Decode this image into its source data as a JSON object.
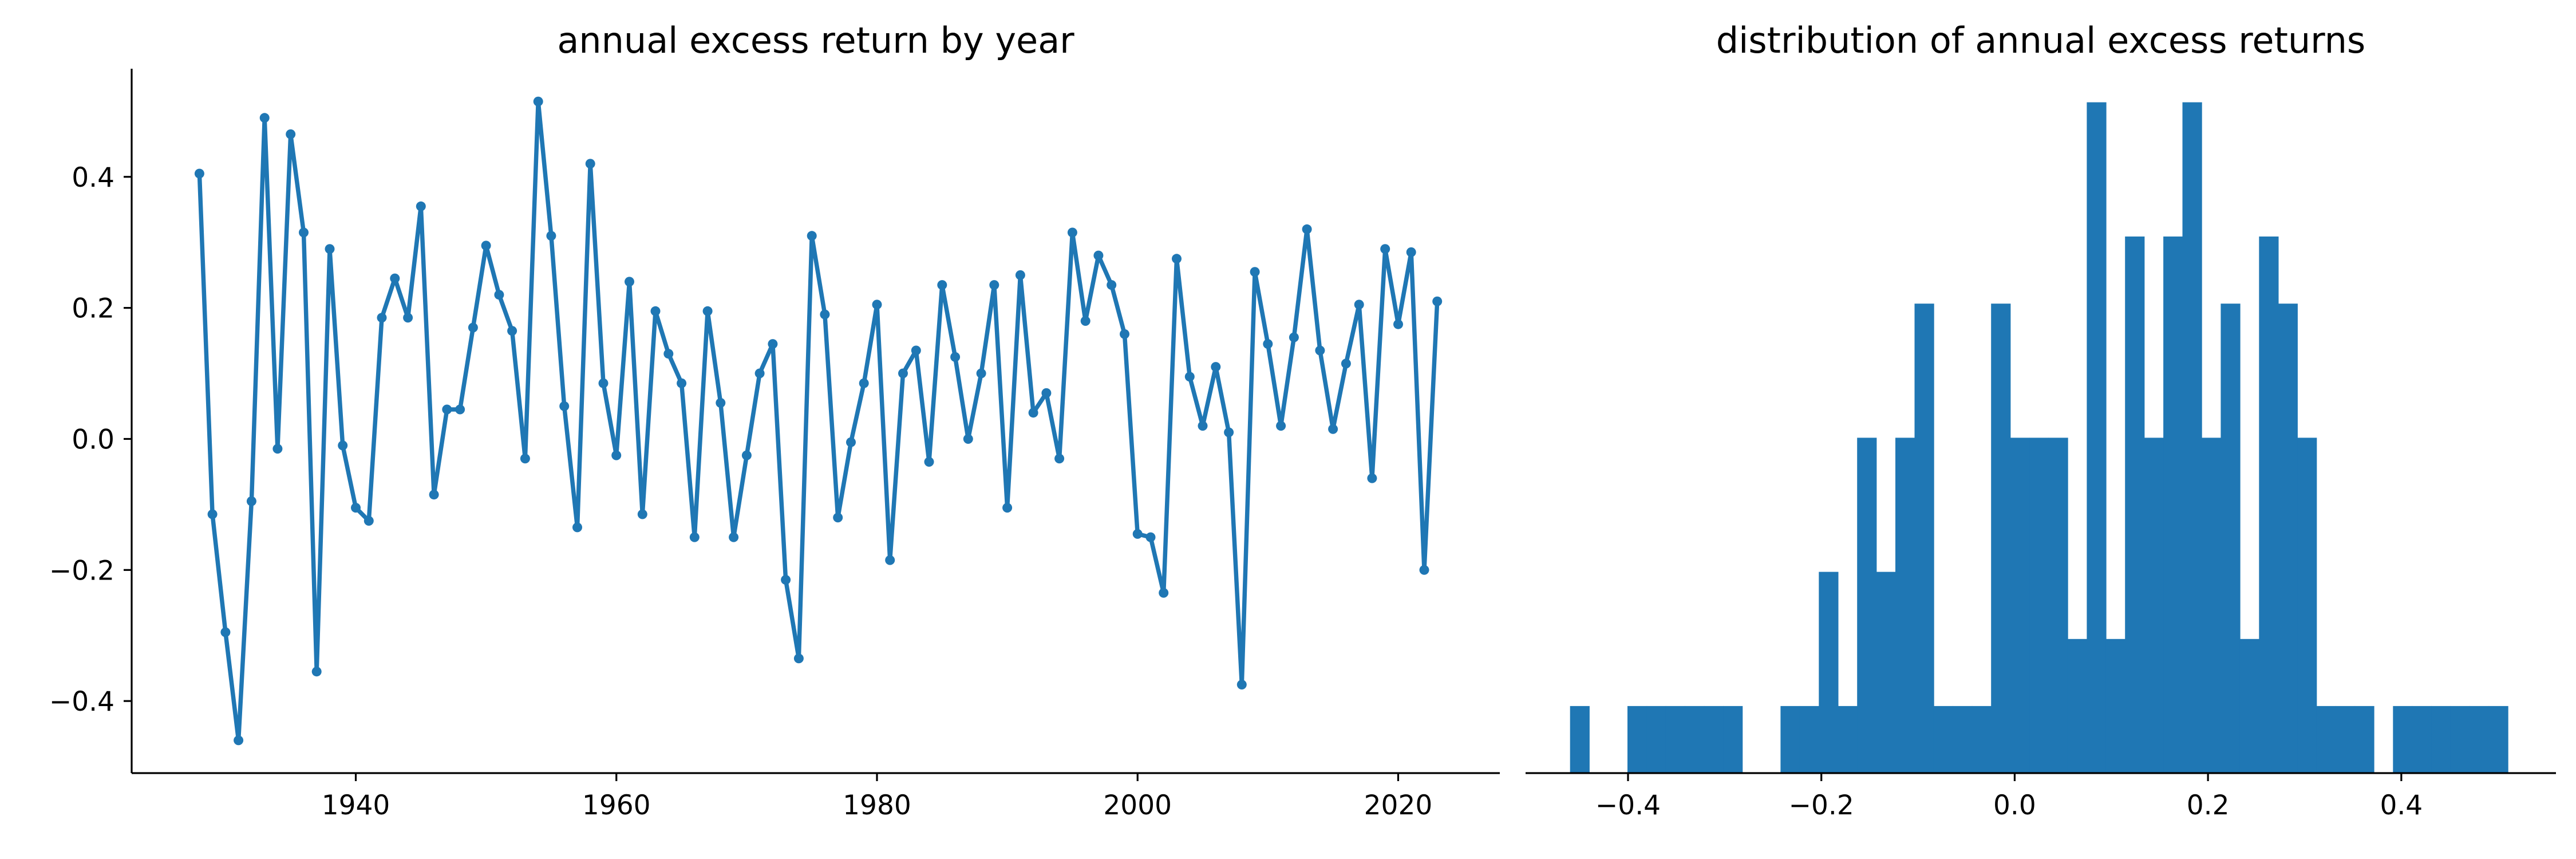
{
  "chart_data": [
    {
      "type": "line",
      "title": "annual excess return by year",
      "xlabel": "",
      "ylabel": "",
      "xlim": [
        1922.8,
        2027.8
      ],
      "ylim": [
        -0.51,
        0.565
      ],
      "x_ticks": [
        1940,
        1960,
        1980,
        2000,
        2020
      ],
      "x_tick_labels": [
        "1940",
        "1960",
        "1980",
        "2000",
        "2020"
      ],
      "y_ticks": [
        -0.4,
        -0.2,
        0.0,
        0.2,
        0.4
      ],
      "y_tick_labels": [
        "−0.4",
        "−0.2",
        "0.0",
        "0.2",
        "0.4"
      ],
      "color": "#1f77b4",
      "grid": false,
      "series": [
        {
          "name": "annual excess return",
          "x": [
            1928,
            1929,
            1930,
            1931,
            1932,
            1933,
            1934,
            1935,
            1936,
            1937,
            1938,
            1939,
            1940,
            1941,
            1942,
            1943,
            1944,
            1945,
            1946,
            1947,
            1948,
            1949,
            1950,
            1951,
            1952,
            1953,
            1954,
            1955,
            1956,
            1957,
            1958,
            1959,
            1960,
            1961,
            1962,
            1963,
            1964,
            1965,
            1966,
            1967,
            1968,
            1969,
            1970,
            1971,
            1972,
            1973,
            1974,
            1975,
            1976,
            1977,
            1978,
            1979,
            1980,
            1981,
            1982,
            1983,
            1984,
            1985,
            1986,
            1987,
            1988,
            1989,
            1990,
            1991,
            1992,
            1993,
            1994,
            1995,
            1996,
            1997,
            1998,
            1999,
            2000,
            2001,
            2002,
            2003,
            2004,
            2005,
            2006,
            2007,
            2008,
            2009,
            2010,
            2011,
            2012,
            2013,
            2014,
            2015,
            2016,
            2017,
            2018,
            2019,
            2020,
            2021,
            2022,
            2023
          ],
          "values": [
            0.405,
            -0.115,
            -0.295,
            -0.46,
            -0.095,
            0.49,
            -0.015,
            0.465,
            0.315,
            -0.355,
            0.29,
            -0.01,
            -0.105,
            -0.125,
            0.185,
            0.245,
            0.185,
            0.355,
            -0.085,
            0.045,
            0.045,
            0.17,
            0.295,
            0.22,
            0.165,
            -0.03,
            0.515,
            0.31,
            0.05,
            -0.135,
            0.42,
            0.085,
            -0.025,
            0.24,
            -0.115,
            0.195,
            0.13,
            0.085,
            -0.15,
            0.195,
            0.055,
            -0.15,
            -0.025,
            0.1,
            0.145,
            -0.215,
            -0.335,
            0.31,
            0.19,
            -0.12,
            -0.005,
            0.085,
            0.205,
            -0.185,
            0.1,
            0.135,
            -0.035,
            0.235,
            0.125,
            0.0,
            0.1,
            0.235,
            -0.105,
            0.25,
            0.04,
            0.07,
            -0.03,
            0.315,
            0.18,
            0.28,
            0.235,
            0.16,
            -0.145,
            -0.15,
            -0.235,
            0.275,
            0.095,
            0.02,
            0.11,
            0.01,
            -0.375,
            0.255,
            0.145,
            0.02,
            0.155,
            0.32,
            0.135,
            0.015,
            0.115,
            0.205,
            -0.06,
            0.29,
            0.175,
            0.285,
            -0.2,
            0.21
          ]
        }
      ]
    },
    {
      "type": "bar",
      "title": "distribution of annual excess returns",
      "xlabel": "",
      "ylabel": "",
      "xlim": [
        -0.506,
        0.56
      ],
      "x_ticks": [
        -0.4,
        -0.2,
        0.0,
        0.2,
        0.4
      ],
      "x_tick_labels": [
        "−0.4",
        "−0.2",
        "0.0",
        "0.2",
        "0.4"
      ],
      "bin_edges": [
        -0.46,
        -0.4402,
        -0.4204,
        -0.4006,
        -0.3808,
        -0.361,
        -0.3412,
        -0.3214,
        -0.3016,
        -0.2818,
        -0.262,
        -0.2422,
        -0.2224,
        -0.2026,
        -0.1828,
        -0.163,
        -0.1432,
        -0.1234,
        -0.1036,
        -0.0838,
        -0.064,
        -0.0442,
        -0.0244,
        -0.0046,
        0.0152,
        0.035,
        0.0548,
        0.0746,
        0.0944,
        0.1142,
        0.134,
        0.1538,
        0.1736,
        0.1934,
        0.2132,
        0.233,
        0.2528,
        0.2726,
        0.2924,
        0.3122,
        0.332,
        0.3518,
        0.3716,
        0.3914,
        0.4112,
        0.431,
        0.4508,
        0.4706,
        0.4904,
        0.5102,
        0.53
      ],
      "densities": [
        0.505,
        0,
        0,
        0.505,
        0.505,
        0.505,
        0.505,
        0.505,
        0.505,
        0,
        0,
        0.505,
        0.505,
        1.515,
        0.505,
        2.525,
        1.515,
        2.525,
        3.535,
        0.505,
        0.505,
        0.505,
        3.535,
        2.525,
        2.525,
        2.525,
        1.01,
        5.051,
        1.01,
        4.04,
        2.525,
        4.04,
        5.051,
        2.525,
        3.535,
        1.01,
        4.04,
        3.535,
        2.525,
        0.505,
        0.505,
        0.505,
        0,
        0.505,
        0.505,
        0.505,
        0.505,
        0.505,
        0.505,
        0
      ],
      "color": "#1f77b4",
      "y_axis_visible": false,
      "grid": false
    }
  ]
}
